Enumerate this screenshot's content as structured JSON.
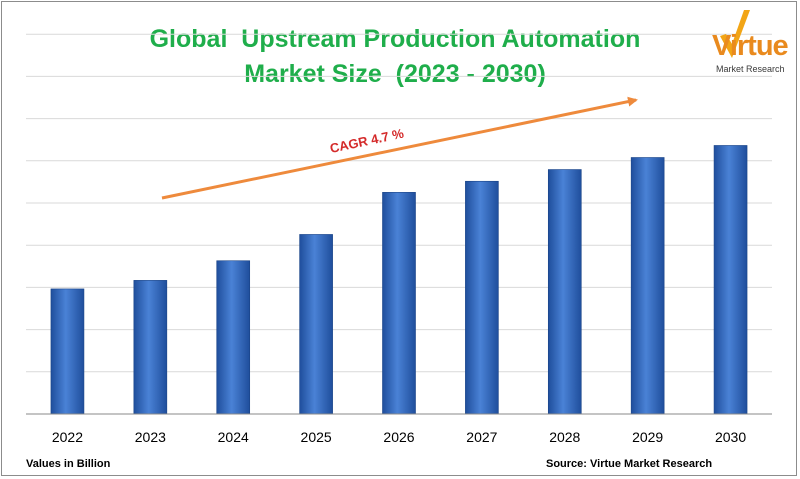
{
  "chart_data": {
    "type": "bar",
    "title_line1": "Global  Upstream Production Automation",
    "title_line2": "Market Size  (2023 - 2030)",
    "categories": [
      "2022",
      "2023",
      "2024",
      "2025",
      "2026",
      "2027",
      "2028",
      "2029",
      "2030"
    ],
    "values": [
      39.5,
      42.2,
      48.4,
      56.7,
      70.0,
      73.5,
      77.2,
      81.0,
      84.8
    ],
    "ylim": [
      0,
      120
    ],
    "grid": true,
    "annotation": "CAGR 4.7 %",
    "bar_color": "#3f72c7",
    "arrow_color": "#ee8a3c",
    "annotation_color": "#d42a2a",
    "title_color": "#1fae4b"
  },
  "logo": {
    "word": "Virtue",
    "subtitle": "Market Research"
  },
  "footer": {
    "units": "Values in Billion",
    "source": "Source: Virtue Market Research"
  }
}
